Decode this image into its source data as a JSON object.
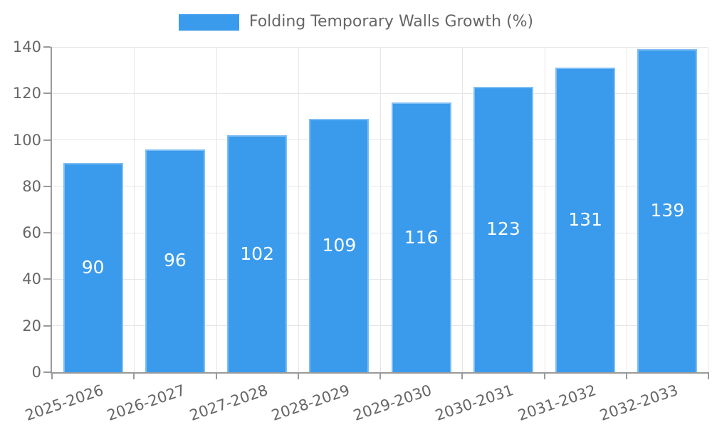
{
  "chart_data": {
    "type": "bar",
    "title": "Folding Temporary Walls Growth (%)",
    "categories": [
      "2025-2026",
      "2026-2027",
      "2027-2028",
      "2028-2029",
      "2029-2030",
      "2030-2031",
      "2031-2032",
      "2032-2033"
    ],
    "values": [
      90,
      96,
      102,
      109,
      116,
      123,
      131,
      139
    ],
    "xlabel": "",
    "ylabel": "",
    "ylim": [
      0,
      140
    ],
    "yticks": [
      0,
      20,
      40,
      60,
      80,
      100,
      120,
      140
    ],
    "grid": true,
    "legend_position": "top",
    "bar_labels_shown": true,
    "colors": {
      "bar": "#3A9BED",
      "bar_border": "rgba(255,255,255,0.35)",
      "bar_label": "#ffffff",
      "axis": "#9a9a9a",
      "grid": "#e6e6e6",
      "text": "#666666",
      "background": "#ffffff"
    }
  }
}
